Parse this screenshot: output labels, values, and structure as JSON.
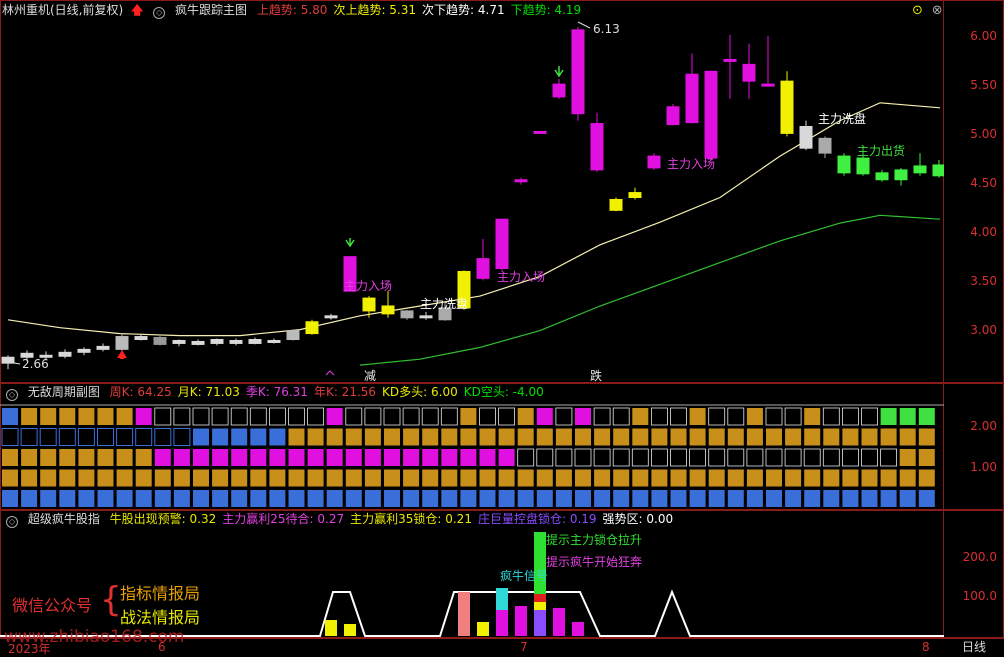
{
  "main": {
    "header": {
      "stock": "林州重机(日线,前复权)",
      "indicator": "疯牛跟踪主图",
      "items": [
        {
          "label": "上趋势:",
          "value": "5.80",
          "color": "#e03c3c"
        },
        {
          "label": "次上趋势:",
          "value": "5.31",
          "color": "#f0f000"
        },
        {
          "label": "次下趋势:",
          "value": "4.71",
          "color": "#ffffff"
        },
        {
          "label": "下趋势:",
          "value": "4.19",
          "color": "#00e000"
        }
      ]
    },
    "yaxis": [
      "6.00",
      "5.50",
      "5.00",
      "4.50",
      "4.00",
      "3.50",
      "3.00"
    ],
    "annotations": {
      "low": "2.66",
      "high": "6.13",
      "enter1": "主力入场",
      "enter2": "主力入场",
      "enter3": "主力入场",
      "wash1": "主力洗盘",
      "wash2": "主力洗盘",
      "exit": "主力出货",
      "fall": "跌",
      "reduce": "减"
    }
  },
  "mid": {
    "header": {
      "indicator": "无敌周期副图",
      "items": [
        {
          "label": "周K:",
          "value": "64.25",
          "color": "#e03c3c"
        },
        {
          "label": "月K:",
          "value": "71.03",
          "color": "#e8e800"
        },
        {
          "label": "季K:",
          "value": "76.31",
          "color": "#e040e0"
        },
        {
          "label": "年K:",
          "value": "21.56",
          "color": "#e03c3c"
        },
        {
          "label": "KD多头:",
          "value": "6.00",
          "color": "#e8e800"
        },
        {
          "label": "KD空头:",
          "value": "-4.00",
          "color": "#00e000"
        }
      ]
    },
    "yaxis": [
      "2.00",
      "1.00"
    ]
  },
  "bottom": {
    "header": {
      "indicator": "超级疯牛股指",
      "items": [
        {
          "label": "牛股出现预警:",
          "value": "0.32",
          "color": "#e8e800"
        },
        {
          "label": "主力赢利25待合:",
          "value": "0.27",
          "color": "#e040e0"
        },
        {
          "label": "主力赢利35锁仓:",
          "value": "0.21",
          "color": "#e8e800"
        },
        {
          "label": "庄巨量控盘锁仓:",
          "value": "0.19",
          "color": "#8a4cff"
        },
        {
          "label": "强势区:",
          "value": "0.00",
          "color": "#ffffff"
        }
      ]
    },
    "yaxis": [
      "200.0",
      "100.0"
    ],
    "labels": {
      "signal": "疯牛信号",
      "lockup": "提示主力锁仓拉升",
      "rush": "提示疯牛开始狂奔"
    },
    "watermark": {
      "title": "微信公众号",
      "line1": "指标情报局",
      "line2": "战法情报局",
      "url": "www.zhibiao168.com"
    }
  },
  "xaxis": [
    "2023年",
    "6",
    "7",
    "8"
  ],
  "period": "日线",
  "chart_data": {
    "type": "candlestick",
    "title": "疯牛跟踪主图",
    "y_range": [
      2.6,
      6.2
    ],
    "high": 6.13,
    "low": 2.66
  }
}
